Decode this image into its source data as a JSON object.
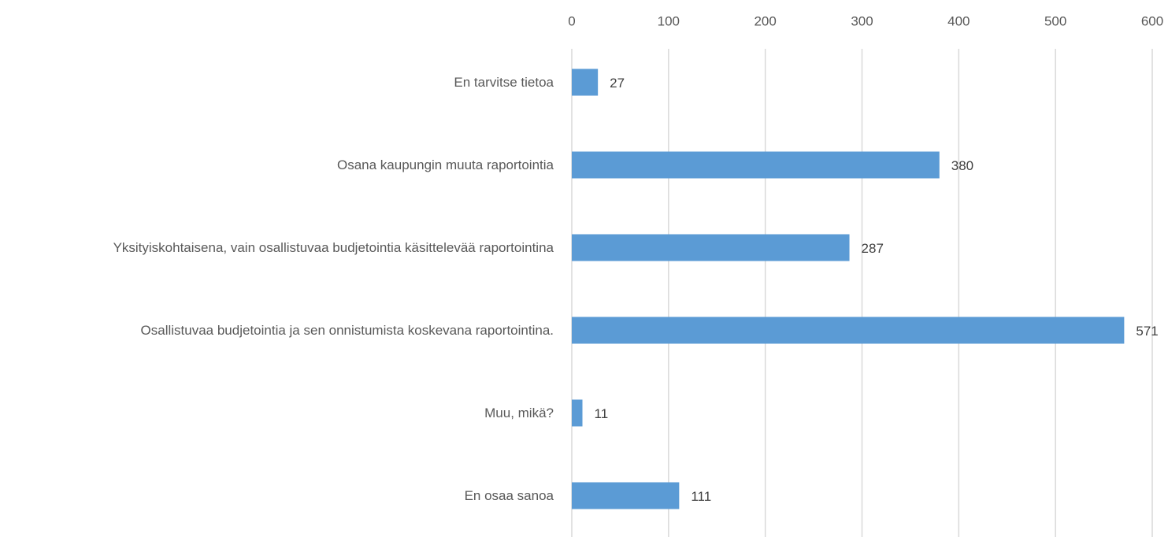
{
  "chart_data": {
    "type": "barh",
    "categories": [
      "En tarvitse tietoa",
      "Osana kaupungin muuta raportointia",
      "Yksityiskohtaisena, vain osallistuvaa budjetointia käsittelevää raportointina",
      "Osallistuvaa budjetointia ja sen onnistumista koskevana raportointina.",
      "Muu, mikä?",
      "En osaa sanoa"
    ],
    "values": [
      27,
      380,
      287,
      571,
      11,
      111
    ],
    "color": "#5b9bd5",
    "xlim": [
      0,
      600
    ],
    "xticks": [
      0,
      100,
      200,
      300,
      400,
      500,
      600
    ],
    "grid": true
  }
}
